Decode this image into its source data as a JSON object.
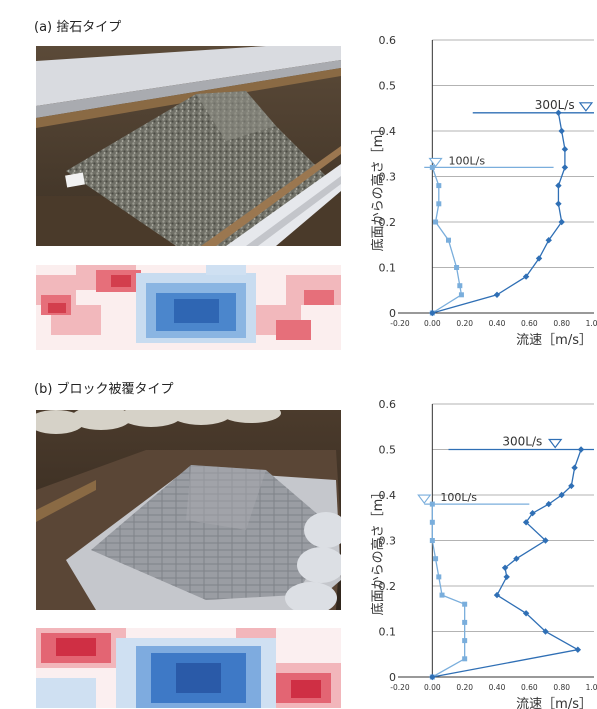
{
  "panels": [
    {
      "title": "(a) 捨石タイプ",
      "photo_kind": "rubble-stone trench with sandbags",
      "heatmap_kind": "red-blue bed change map",
      "chart_data": {
        "type": "line",
        "xlabel": "流速［m/s］",
        "ylabel": "底面からの高さ［m］",
        "xlim": [
          -0.2,
          1.0
        ],
        "ylim": [
          0,
          0.6
        ],
        "xticks": [
          "-0.20",
          "0.00",
          "0.20",
          "0.40",
          "0.60",
          "0.80",
          "1.00"
        ],
        "yticks": [
          "0",
          "0.1",
          "0.2",
          "0.3",
          "0.4",
          "0.5",
          "0.6"
        ],
        "grid": "horizontal",
        "series": [
          {
            "name": "100L/s",
            "color": "#7aaedc",
            "marker": "square",
            "points": [
              [
                0.0,
                0.0
              ],
              [
                0.18,
                0.04
              ],
              [
                0.17,
                0.06
              ],
              [
                0.15,
                0.1
              ],
              [
                0.1,
                0.16
              ],
              [
                0.02,
                0.2
              ],
              [
                0.04,
                0.24
              ],
              [
                0.04,
                0.28
              ],
              [
                0.0,
                0.32
              ]
            ],
            "water_level": 0.32
          },
          {
            "name": "300L/s",
            "color": "#2f6fb5",
            "marker": "diamond",
            "points": [
              [
                0.0,
                0.0
              ],
              [
                0.4,
                0.04
              ],
              [
                0.58,
                0.08
              ],
              [
                0.66,
                0.12
              ],
              [
                0.72,
                0.16
              ],
              [
                0.8,
                0.2
              ],
              [
                0.78,
                0.24
              ],
              [
                0.78,
                0.28
              ],
              [
                0.82,
                0.32
              ],
              [
                0.82,
                0.36
              ],
              [
                0.8,
                0.4
              ],
              [
                0.78,
                0.44
              ]
            ],
            "water_level": 0.44
          }
        ]
      }
    },
    {
      "title": "(b) ブロック被覆タイプ",
      "photo_kind": "concrete block revetment trench with sandbags",
      "heatmap_kind": "red-blue bed change map",
      "chart_data": {
        "type": "line",
        "xlabel": "流速［m/s］",
        "ylabel": "底面からの高さ［m］",
        "xlim": [
          -0.2,
          1.0
        ],
        "ylim": [
          0,
          0.6
        ],
        "xticks": [
          "-0.20",
          "0.00",
          "0.20",
          "0.40",
          "0.60",
          "0.80",
          "1.00"
        ],
        "yticks": [
          "0",
          "0.1",
          "0.2",
          "0.3",
          "0.4",
          "0.5",
          "0.6"
        ],
        "grid": "horizontal",
        "series": [
          {
            "name": "100L/s",
            "color": "#7aaedc",
            "marker": "square",
            "points": [
              [
                0.0,
                0.0
              ],
              [
                0.2,
                0.04
              ],
              [
                0.2,
                0.08
              ],
              [
                0.2,
                0.12
              ],
              [
                0.2,
                0.16
              ],
              [
                0.06,
                0.18
              ],
              [
                0.04,
                0.22
              ],
              [
                0.02,
                0.26
              ],
              [
                0.0,
                0.3
              ],
              [
                0.0,
                0.34
              ],
              [
                0.0,
                0.38
              ]
            ],
            "water_level": 0.38
          },
          {
            "name": "300L/s",
            "color": "#2f6fb5",
            "marker": "diamond",
            "points": [
              [
                0.0,
                0.0
              ],
              [
                0.9,
                0.06
              ],
              [
                0.7,
                0.1
              ],
              [
                0.58,
                0.14
              ],
              [
                0.4,
                0.18
              ],
              [
                0.46,
                0.22
              ],
              [
                0.45,
                0.24
              ],
              [
                0.52,
                0.26
              ],
              [
                0.7,
                0.3
              ],
              [
                0.58,
                0.34
              ],
              [
                0.62,
                0.36
              ],
              [
                0.72,
                0.38
              ],
              [
                0.8,
                0.4
              ],
              [
                0.86,
                0.42
              ],
              [
                0.88,
                0.46
              ],
              [
                0.92,
                0.5
              ]
            ],
            "water_level": 0.5
          }
        ]
      }
    }
  ]
}
